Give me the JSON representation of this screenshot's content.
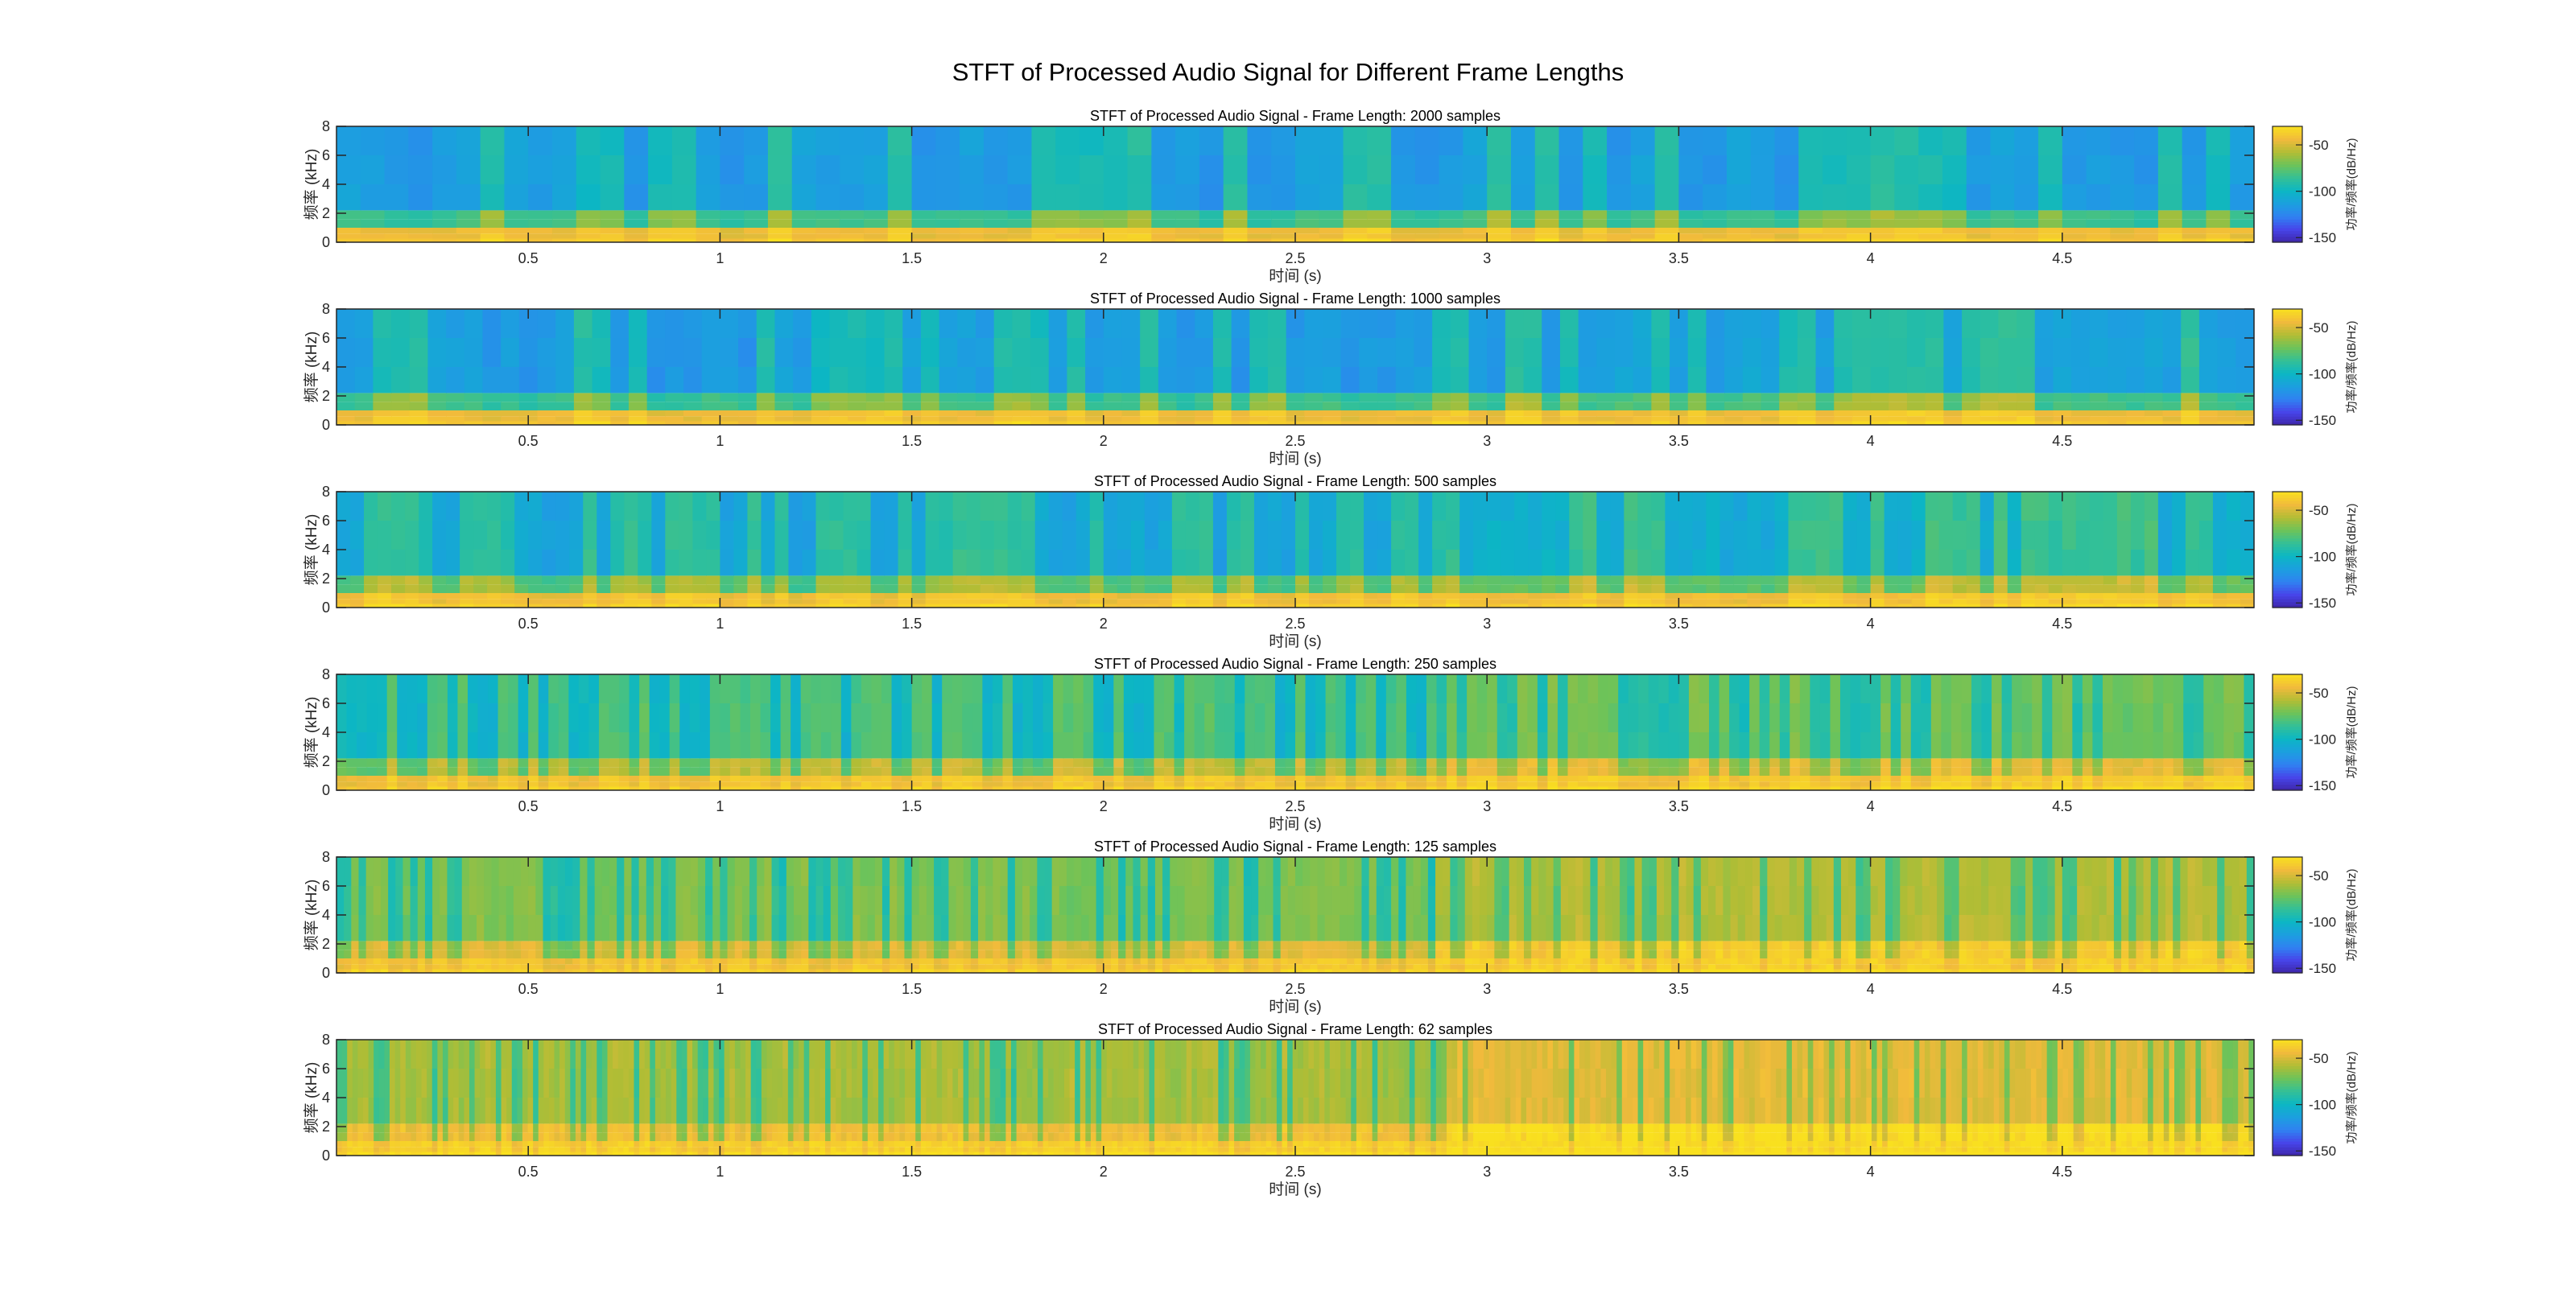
{
  "figure": {
    "suptitle": "STFT of Processed Audio Signal for Different Frame Lengths"
  },
  "colors": {
    "parula": [
      "#3e26a8",
      "#4744e9",
      "#3081f2",
      "#1c9fdf",
      "#0cb6c4",
      "#33c097",
      "#6cc35a",
      "#b1bd35",
      "#f1ba3c",
      "#f9e01f"
    ],
    "axes": "#262626",
    "background": "#ffffff"
  },
  "chart_data": [
    {
      "type": "heatmap",
      "title": "STFT of Processed Audio Signal - Frame Length: 2000 samples",
      "frame_length": 2000,
      "xlabel": "时间 (s)",
      "ylabel": "频率 (kHz)",
      "xlim": [
        0,
        5
      ],
      "ylim": [
        0,
        8
      ],
      "xticks": [
        0.5,
        1,
        1.5,
        2,
        2.5,
        3,
        3.5,
        4,
        4.5
      ],
      "xtick_labels": [
        "0.5",
        "1",
        "1.5",
        "2",
        "2.5",
        "3",
        "3.5",
        "4",
        "4.5"
      ],
      "yticks": [
        0,
        2,
        4,
        6,
        8
      ],
      "ytick_labels": [
        "0",
        "2",
        "4",
        "6",
        "8"
      ],
      "colorbar": {
        "label": "功率/频率(dB/Hz)",
        "range": [
          -155,
          -30
        ],
        "ticks": [
          -50,
          -100,
          -150
        ],
        "tick_labels": [
          "-50",
          "-100",
          "-150"
        ]
      },
      "colormap": "parula",
      "approx_levels_db": {
        "low_band_0_1kHz": -45,
        "mid_band_1_2kHz": -85,
        "high_band_2_8kHz": -115
      },
      "segment_boundaries_s": [
        0.65,
        1.73,
        2.86
      ],
      "grid": false
    },
    {
      "type": "heatmap",
      "title": "STFT of Processed Audio Signal - Frame Length: 1000 samples",
      "frame_length": 1000,
      "xlabel": "时间 (s)",
      "ylabel": "频率 (kHz)",
      "xlim": [
        0,
        5
      ],
      "ylim": [
        0,
        8
      ],
      "xticks": [
        0.5,
        1,
        1.5,
        2,
        2.5,
        3,
        3.5,
        4,
        4.5
      ],
      "xtick_labels": [
        "0.5",
        "1",
        "1.5",
        "2",
        "2.5",
        "3",
        "3.5",
        "4",
        "4.5"
      ],
      "yticks": [
        0,
        2,
        4,
        6,
        8
      ],
      "ytick_labels": [
        "0",
        "2",
        "4",
        "6",
        "8"
      ],
      "colorbar": {
        "label": "功率/频率(dB/Hz)",
        "range": [
          -155,
          -30
        ],
        "ticks": [
          -50,
          -100,
          -150
        ],
        "tick_labels": [
          "-50",
          "-100",
          "-150"
        ]
      },
      "colormap": "parula",
      "approx_levels_db": {
        "low_band_0_1kHz": -45,
        "mid_band_1_2kHz": -85,
        "high_band_2_8kHz": -115
      },
      "segment_boundaries_s": [
        0.65,
        1.73,
        2.86
      ],
      "grid": false
    },
    {
      "type": "heatmap",
      "title": "STFT of Processed Audio Signal - Frame Length: 500 samples",
      "frame_length": 500,
      "xlabel": "时间 (s)",
      "ylabel": "频率 (kHz)",
      "xlim": [
        0,
        5
      ],
      "ylim": [
        0,
        8
      ],
      "xticks": [
        0.5,
        1,
        1.5,
        2,
        2.5,
        3,
        3.5,
        4,
        4.5
      ],
      "xtick_labels": [
        "0.5",
        "1",
        "1.5",
        "2",
        "2.5",
        "3",
        "3.5",
        "4",
        "4.5"
      ],
      "yticks": [
        0,
        2,
        4,
        6,
        8
      ],
      "ytick_labels": [
        "0",
        "2",
        "4",
        "6",
        "8"
      ],
      "colorbar": {
        "label": "功率/频率(dB/Hz)",
        "range": [
          -155,
          -30
        ],
        "ticks": [
          -50,
          -100,
          -150
        ],
        "tick_labels": [
          "-50",
          "-100",
          "-150"
        ]
      },
      "colormap": "parula",
      "approx_levels_db": {
        "low_band_0_1kHz": -45,
        "mid_band_1_2kHz": -80,
        "high_band_2_8kHz": -110
      },
      "segment_boundaries_s": [
        0.65,
        1.73,
        2.86
      ],
      "grid": false
    },
    {
      "type": "heatmap",
      "title": "STFT of Processed Audio Signal - Frame Length: 250 samples",
      "frame_length": 250,
      "xlabel": "时间 (s)",
      "ylabel": "频率 (kHz)",
      "xlim": [
        0,
        5
      ],
      "ylim": [
        0,
        8
      ],
      "xticks": [
        0.5,
        1,
        1.5,
        2,
        2.5,
        3,
        3.5,
        4,
        4.5
      ],
      "xtick_labels": [
        "0.5",
        "1",
        "1.5",
        "2",
        "2.5",
        "3",
        "3.5",
        "4",
        "4.5"
      ],
      "yticks": [
        0,
        2,
        4,
        6,
        8
      ],
      "ytick_labels": [
        "0",
        "2",
        "4",
        "6",
        "8"
      ],
      "colorbar": {
        "label": "功率/频率(dB/Hz)",
        "range": [
          -155,
          -30
        ],
        "ticks": [
          -50,
          -100,
          -150
        ],
        "tick_labels": [
          "-50",
          "-100",
          "-150"
        ]
      },
      "colormap": "parula",
      "approx_levels_db": {
        "low_band_0_1kHz": -45,
        "mid_band_1_2kHz": -75,
        "high_band_2_8kHz": -100
      },
      "segment_boundaries_s": [
        0.65,
        1.73,
        2.86
      ],
      "grid": false
    },
    {
      "type": "heatmap",
      "title": "STFT of Processed Audio Signal - Frame Length: 125 samples",
      "frame_length": 125,
      "xlabel": "时间 (s)",
      "ylabel": "频率 (kHz)",
      "xlim": [
        0,
        5
      ],
      "ylim": [
        0,
        8
      ],
      "xticks": [
        0.5,
        1,
        1.5,
        2,
        2.5,
        3,
        3.5,
        4,
        4.5
      ],
      "xtick_labels": [
        "0.5",
        "1",
        "1.5",
        "2",
        "2.5",
        "3",
        "3.5",
        "4",
        "4.5"
      ],
      "yticks": [
        0,
        2,
        4,
        6,
        8
      ],
      "ytick_labels": [
        "0",
        "2",
        "4",
        "6",
        "8"
      ],
      "colorbar": {
        "label": "功率/频率(dB/Hz)",
        "range": [
          -155,
          -30
        ],
        "ticks": [
          -50,
          -100,
          -150
        ],
        "tick_labels": [
          "-50",
          "-100",
          "-150"
        ]
      },
      "colormap": "parula",
      "approx_levels_db": {
        "low_band_0_1kHz": -45,
        "mid_band_1_2kHz": -70,
        "high_band_2_8kHz": -90
      },
      "segment_boundaries_s": [
        0.65,
        1.73,
        2.86
      ],
      "grid": false
    },
    {
      "type": "heatmap",
      "title": "STFT of Processed Audio Signal - Frame Length: 62 samples",
      "frame_length": 62,
      "xlabel": "时间 (s)",
      "ylabel": "频率 (kHz)",
      "xlim": [
        0,
        5
      ],
      "ylim": [
        0,
        8
      ],
      "xticks": [
        0.5,
        1,
        1.5,
        2,
        2.5,
        3,
        3.5,
        4,
        4.5
      ],
      "xtick_labels": [
        "0.5",
        "1",
        "1.5",
        "2",
        "2.5",
        "3",
        "3.5",
        "4",
        "4.5"
      ],
      "yticks": [
        0,
        2,
        4,
        6,
        8
      ],
      "ytick_labels": [
        "0",
        "2",
        "4",
        "6",
        "8"
      ],
      "colorbar": {
        "label": "功率/频率(dB/Hz)",
        "range": [
          -155,
          -30
        ],
        "ticks": [
          -50,
          -100,
          -150
        ],
        "tick_labels": [
          "-50",
          "-100",
          "-150"
        ]
      },
      "colormap": "parula",
      "approx_levels_db": {
        "low_band_0_1kHz": -42,
        "mid_band_1_2kHz": -65,
        "high_band_2_8kHz": -82
      },
      "segment_boundaries_s": [
        0.65,
        1.73,
        2.86
      ],
      "grid": false
    }
  ]
}
